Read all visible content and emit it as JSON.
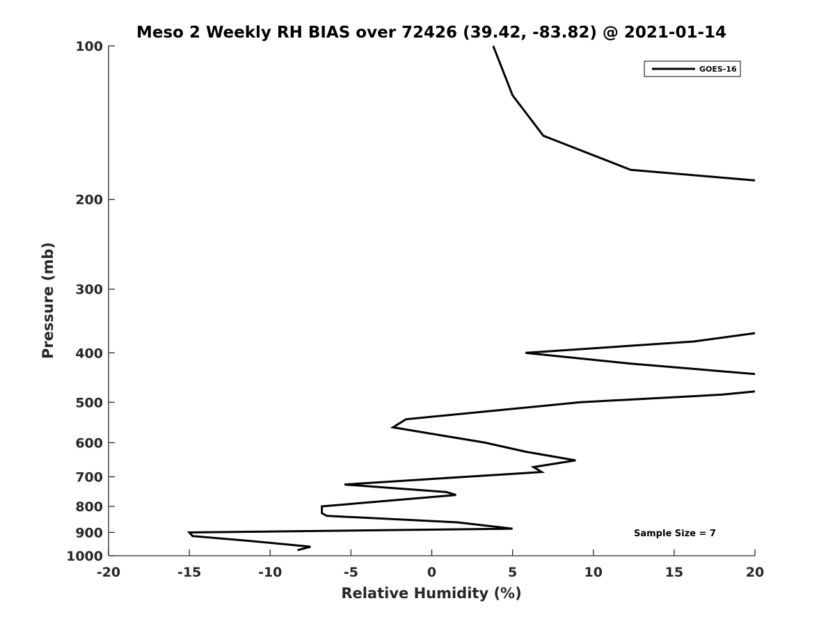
{
  "chart_data": {
    "type": "line",
    "title": "Meso 2 Weekly RH BIAS over 72426 (39.42, -83.82) @ 2021-01-14",
    "xlabel": "Relative Humidity (%)",
    "ylabel": "Pressure (mb)",
    "xlim": [
      -20,
      20
    ],
    "ylim": [
      100,
      1000
    ],
    "yscale": "log",
    "y_reversed": true,
    "xticks": [
      -20,
      -15,
      -10,
      -5,
      0,
      5,
      10,
      15,
      20
    ],
    "yticks": [
      100,
      200,
      300,
      400,
      500,
      600,
      700,
      800,
      900,
      1000
    ],
    "grid": false,
    "legend_position": "top-right",
    "annotation": "Sample Size = 7",
    "series": [
      {
        "name": "GOES-16",
        "color": "#000000",
        "points": [
          [
            3.8,
            100
          ],
          [
            5.0,
            125
          ],
          [
            6.9,
            150
          ],
          [
            12.3,
            175
          ],
          [
            20.0,
            183.6
          ],
          [
            null,
            null
          ],
          [
            20.0,
            366
          ],
          [
            16.2,
            380
          ],
          [
            5.8,
            400
          ],
          [
            12.3,
            420
          ],
          [
            20.0,
            440
          ],
          [
            null,
            null
          ],
          [
            20.0,
            476
          ],
          [
            18.0,
            483
          ],
          [
            9.2,
            500
          ],
          [
            -1.6,
            540
          ],
          [
            -2.4,
            560
          ],
          [
            3.3,
            600
          ],
          [
            5.8,
            625
          ],
          [
            8.9,
            650
          ],
          [
            6.3,
            670
          ],
          [
            6.8,
            685
          ],
          [
            2.1,
            700
          ],
          [
            -5.4,
            725
          ],
          [
            0.9,
            750
          ],
          [
            1.5,
            760
          ],
          [
            -3.7,
            785
          ],
          [
            -6.8,
            800
          ],
          [
            -6.8,
            825
          ],
          [
            -6.5,
            835
          ],
          [
            1.6,
            860
          ],
          [
            5.0,
            885
          ],
          [
            -15.0,
            900
          ],
          [
            -14.8,
            915
          ],
          [
            -11.3,
            935
          ],
          [
            -7.5,
            960
          ],
          [
            -8.3,
            975
          ]
        ]
      }
    ]
  }
}
